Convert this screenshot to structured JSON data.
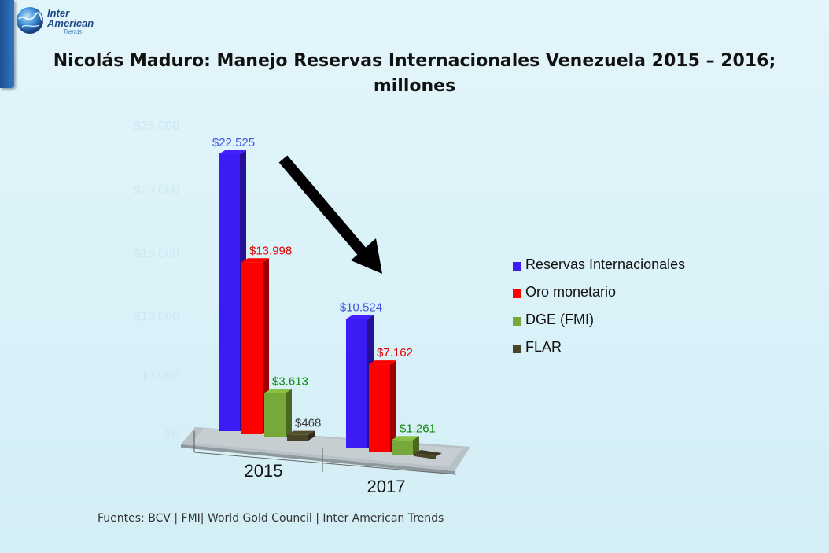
{
  "logo": {
    "line1": "Inter",
    "line2": "American",
    "line3": "Trends"
  },
  "title": {
    "line1": "Nicolás Maduro: Manejo Reservas Internacionales Venezuela  2015 – 2016;",
    "line2": "millones"
  },
  "source": "Fuentes: BCV | FMI| World Gold Council |  Inter American Trends",
  "colors": {
    "reservas": "#3b1cf5",
    "oro": "#ff0000",
    "dge": "#77a83a",
    "flar": "#4a4528",
    "label_reservas": "#3d55e0",
    "label_oro": "#e00000",
    "label_dge": "#0f8a0f",
    "label_flar": "#3a3a3a"
  },
  "chart_data": {
    "type": "bar",
    "categories": [
      "2015",
      "2017"
    ],
    "yticks": [
      "$0",
      "$5.000",
      "$10.000",
      "$15.000",
      "$20.000",
      "$25.000"
    ],
    "ylim": [
      0,
      25000
    ],
    "series": [
      {
        "name": "Reservas Internacionales",
        "values": [
          22525,
          10524
        ],
        "labels": [
          "$22.525",
          "$10.524"
        ]
      },
      {
        "name": "Oro monetario",
        "values": [
          13998,
          7162
        ],
        "labels": [
          "$13.998",
          "$7.162"
        ]
      },
      {
        "name": "DGE (FMI)",
        "values": [
          3613,
          1261
        ],
        "labels": [
          "$3.613",
          "$1.261"
        ]
      },
      {
        "name": "FLAR",
        "values": [
          468,
          null
        ],
        "labels": [
          "$468",
          ""
        ]
      }
    ],
    "legend_position": "right",
    "annotation": "downward arrow from 2015 to 2017"
  }
}
